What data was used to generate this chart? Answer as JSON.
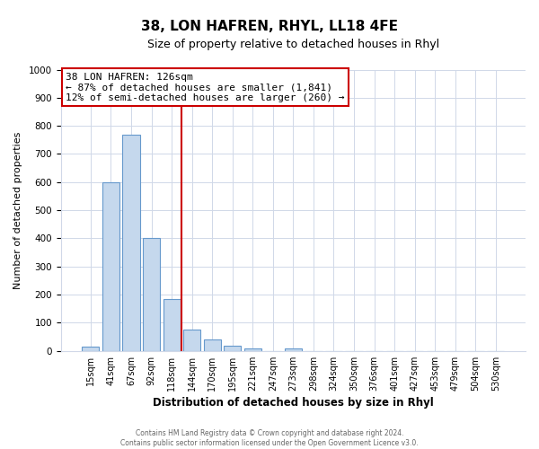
{
  "title": "38, LON HAFREN, RHYL, LL18 4FE",
  "subtitle": "Size of property relative to detached houses in Rhyl",
  "xlabel": "Distribution of detached houses by size in Rhyl",
  "ylabel": "Number of detached properties",
  "bar_labels": [
    "15sqm",
    "41sqm",
    "67sqm",
    "92sqm",
    "118sqm",
    "144sqm",
    "170sqm",
    "195sqm",
    "221sqm",
    "247sqm",
    "273sqm",
    "298sqm",
    "324sqm",
    "350sqm",
    "376sqm",
    "401sqm",
    "427sqm",
    "453sqm",
    "479sqm",
    "504sqm",
    "530sqm"
  ],
  "bar_values": [
    15,
    600,
    770,
    400,
    185,
    75,
    40,
    18,
    10,
    0,
    10,
    0,
    0,
    0,
    0,
    0,
    0,
    0,
    0,
    0,
    0
  ],
  "bar_color": "#c5d8ed",
  "bar_edge_color": "#6699cc",
  "vline_x": 4.5,
  "vline_color": "#cc0000",
  "annotation_title": "38 LON HAFREN: 126sqm",
  "annotation_line1": "← 87% of detached houses are smaller (1,841)",
  "annotation_line2": "12% of semi-detached houses are larger (260) →",
  "annotation_box_color": "#cc0000",
  "ylim": [
    0,
    1000
  ],
  "yticks": [
    0,
    100,
    200,
    300,
    400,
    500,
    600,
    700,
    800,
    900,
    1000
  ],
  "background_color": "#ffffff",
  "plot_bg_color": "#ffffff",
  "grid_color": "#d0d8e8",
  "footer_line1": "Contains HM Land Registry data © Crown copyright and database right 2024.",
  "footer_line2": "Contains public sector information licensed under the Open Government Licence v3.0."
}
